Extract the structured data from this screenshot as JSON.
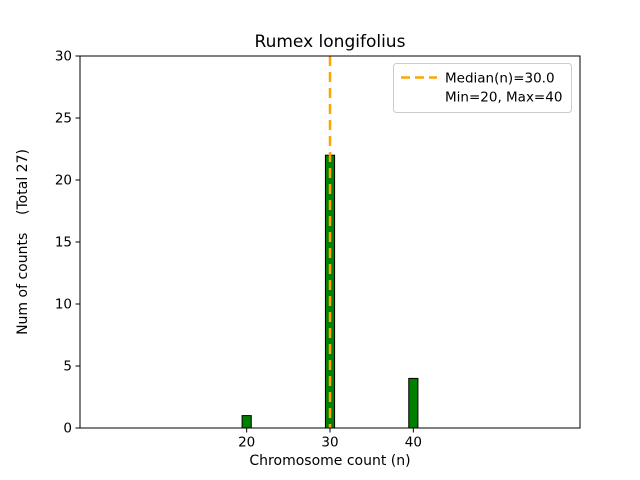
{
  "chart_data": {
    "type": "bar",
    "title": "Rumex longifolius",
    "xlabel": "Chromosome count (n)",
    "ylabel": "Num of counts    (Total 27)",
    "categories": [
      20,
      30,
      40
    ],
    "values": [
      1,
      22,
      4
    ],
    "total_label": "(Total 27)",
    "xlim": [
      0,
      60
    ],
    "ylim": [
      0,
      30
    ],
    "xticks": [
      20,
      30,
      40
    ],
    "yticks": [
      0,
      5,
      10,
      15,
      20,
      25,
      30
    ],
    "bar_width_units": 1.1,
    "bar_color": "#008000",
    "bar_edge_color": "#000000",
    "grid": false,
    "median_line": {
      "x": 30,
      "color": "#FFA500",
      "style": "dashed"
    },
    "legend": {
      "position": "upper-right",
      "entries": [
        {
          "label": "Median(n)=30.0",
          "marker": "dashed-line",
          "color": "#FFA500"
        },
        {
          "label": "Min=20, Max=40",
          "marker": "none"
        }
      ]
    }
  }
}
